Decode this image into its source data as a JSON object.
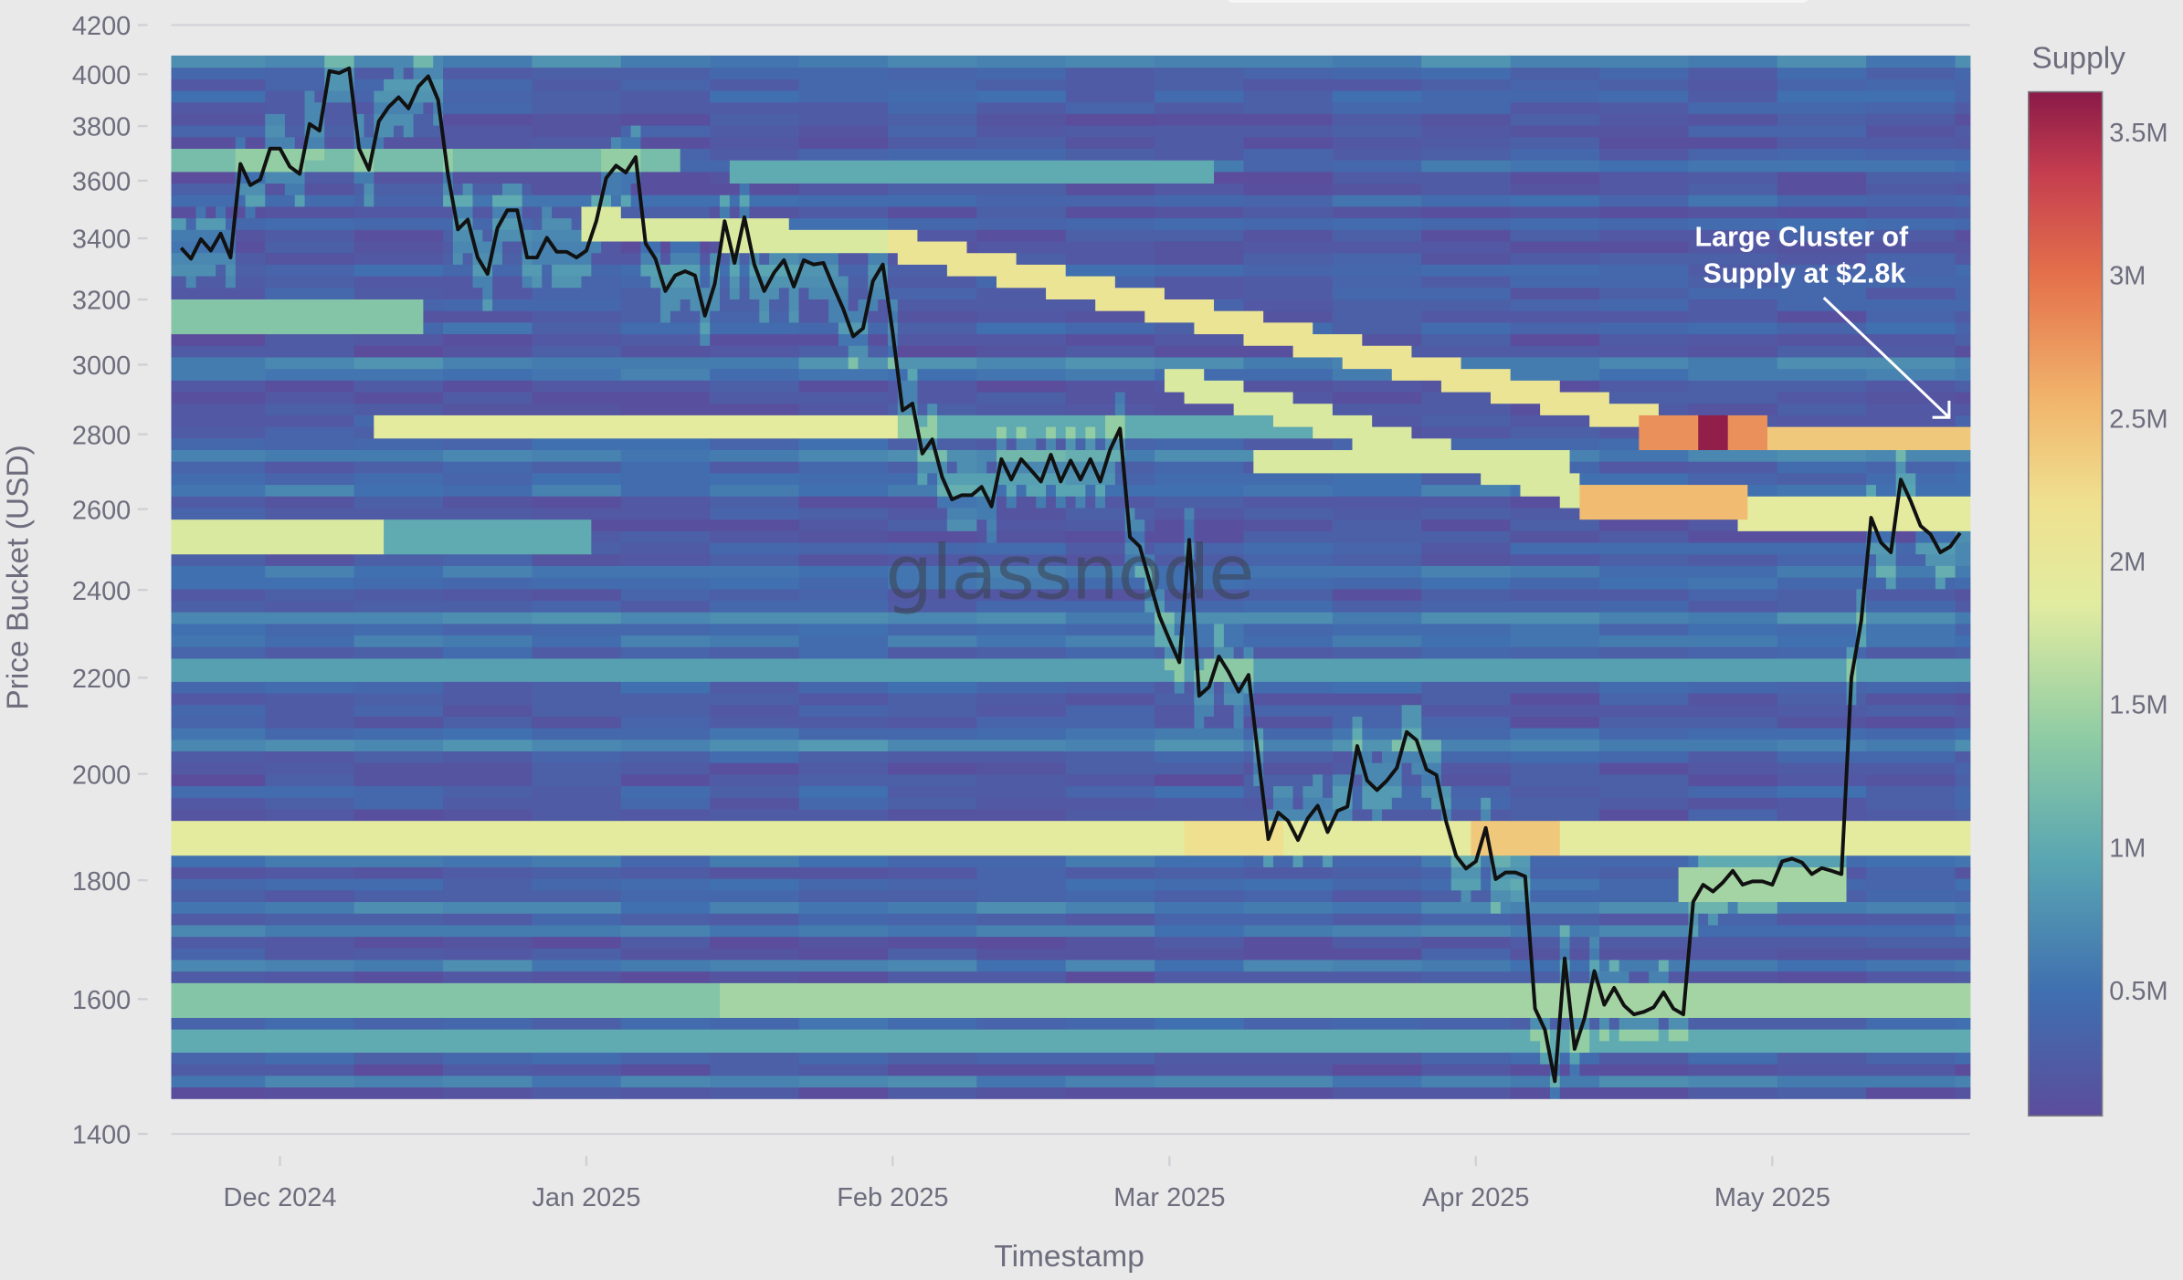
{
  "chart_data": {
    "type": "heatmap",
    "xlabel": "Timestamp",
    "ylabel": "Price Bucket (USD)",
    "yscale": "log",
    "ylim": [
      1400,
      4200
    ],
    "xlim": [
      "2024-11-20",
      "2025-05-21"
    ],
    "grid": false,
    "watermark": "glassnode",
    "y_ticks": [
      "4200",
      "4000",
      "3800",
      "3600",
      "3400",
      "3200",
      "3000",
      "2800",
      "2600",
      "2400",
      "2200",
      "2000",
      "1800",
      "1600",
      "1400"
    ],
    "x_ticks": [
      {
        "date": "2024-12-01",
        "label": "Dec 2024"
      },
      {
        "date": "2025-01-01",
        "label": "Jan 2025"
      },
      {
        "date": "2025-02-01",
        "label": "Feb 2025"
      },
      {
        "date": "2025-03-01",
        "label": "Mar 2025"
      },
      {
        "date": "2025-04-01",
        "label": "Apr 2025"
      },
      {
        "date": "2025-05-01",
        "label": "May 2025"
      }
    ],
    "colorbar": {
      "title": "Supply",
      "range": [
        0.06,
        3.64
      ],
      "ticks": [
        {
          "value": 0.5,
          "label": "0.5M"
        },
        {
          "value": 1,
          "label": "1M"
        },
        {
          "value": 1.5,
          "label": "1.5M"
        },
        {
          "value": 2,
          "label": "2M"
        },
        {
          "value": 2.5,
          "label": "2.5M"
        },
        {
          "value": 3,
          "label": "3M"
        },
        {
          "value": 3.5,
          "label": "3.5M"
        }
      ],
      "colorscale": [
        [
          0,
          "#5b4d9c"
        ],
        [
          0.12,
          "#3f6fb0"
        ],
        [
          0.25,
          "#5aa6b2"
        ],
        [
          0.37,
          "#8fcca4"
        ],
        [
          0.5,
          "#e2eca0"
        ],
        [
          0.6,
          "#efe08f"
        ],
        [
          0.7,
          "#f1b46c"
        ],
        [
          0.82,
          "#e4714b"
        ],
        [
          0.92,
          "#c53e4f"
        ],
        [
          1,
          "#8a1a48"
        ]
      ]
    },
    "heatmap": {
      "price_range": [
        1450,
        4075
      ],
      "background_supply": [
        0.15,
        0.7
      ],
      "bands": [
        {
          "start": "2024-11-20",
          "end": "2025-05-21",
          "price_start": 1880,
          "price_end": 1880,
          "supply": 1.9
        },
        {
          "start": "2025-03-03",
          "end": "2025-03-12",
          "price_start": 1880,
          "price_end": 1880,
          "supply": 2.2
        },
        {
          "start": "2025-04-01",
          "end": "2025-04-09",
          "price_start": 1880,
          "price_end": 1880,
          "supply": 2.4
        },
        {
          "start": "2024-11-20",
          "end": "2025-01-15",
          "price_start": 1600,
          "price_end": 1600,
          "supply": 1.3
        },
        {
          "start": "2025-01-15",
          "end": "2025-05-21",
          "price_start": 1600,
          "price_end": 1600,
          "supply": 1.5
        },
        {
          "start": "2024-11-20",
          "end": "2025-05-21",
          "price_start": 1535,
          "price_end": 1535,
          "supply": 1.0
        },
        {
          "start": "2024-12-11",
          "end": "2025-02-01",
          "price_start": 2820,
          "price_end": 2820,
          "supply": 1.9
        },
        {
          "start": "2025-02-01",
          "end": "2025-03-15",
          "price_start": 2820,
          "price_end": 2820,
          "supply": 1.0
        },
        {
          "start": "2024-11-20",
          "end": "2024-12-11",
          "price_start": 2525,
          "price_end": 2525,
          "supply": 1.8
        },
        {
          "start": "2024-12-11",
          "end": "2025-01-01",
          "price_start": 2525,
          "price_end": 2525,
          "supply": 1.0
        },
        {
          "start": "2025-01-01",
          "end": "2025-02-01",
          "price_start": 3450,
          "price_end": 3380,
          "supply": 1.8
        },
        {
          "start": "2025-02-01",
          "end": "2025-04-20",
          "price_start": 3380,
          "price_end": 2830,
          "supply": 2.1
        },
        {
          "start": "2025-04-20",
          "end": "2025-05-21",
          "price_start": 2790,
          "price_end": 2790,
          "supply": 2.4
        },
        {
          "start": "2025-04-18",
          "end": "2025-04-30",
          "price_start": 2800,
          "price_end": 2800,
          "supply": 2.8
        },
        {
          "start": "2025-04-24",
          "end": "2025-04-26",
          "price_start": 2800,
          "price_end": 2800,
          "supply": 3.6
        },
        {
          "start": "2025-03-01",
          "end": "2025-04-12",
          "price_start": 2960,
          "price_end": 2640,
          "supply": 1.8
        },
        {
          "start": "2025-04-12",
          "end": "2025-04-28",
          "price_start": 2620,
          "price_end": 2620,
          "supply": 2.5
        },
        {
          "start": "2025-04-28",
          "end": "2025-05-21",
          "price_start": 2590,
          "price_end": 2590,
          "supply": 1.9
        },
        {
          "start": "2025-03-10",
          "end": "2025-04-10",
          "price_start": 2720,
          "price_end": 2720,
          "supply": 1.8
        },
        {
          "start": "2025-01-16",
          "end": "2025-03-05",
          "price_start": 3640,
          "price_end": 3640,
          "supply": 1.0
        },
        {
          "start": "2025-04-22",
          "end": "2025-05-08",
          "price_start": 1790,
          "price_end": 1790,
          "supply": 1.5
        },
        {
          "start": "2024-11-20",
          "end": "2025-05-21",
          "price_start": 2220,
          "price_end": 2220,
          "supply": 0.9
        },
        {
          "start": "2024-11-20",
          "end": "2024-12-15",
          "price_start": 3150,
          "price_end": 3150,
          "supply": 1.3
        },
        {
          "start": "2024-11-20",
          "end": "2025-01-10",
          "price_start": 3670,
          "price_end": 3670,
          "supply": 1.2
        }
      ]
    },
    "series": [
      {
        "type": "line",
        "color": "#111111",
        "x": [
          "2024-11-21",
          "2024-11-22",
          "2024-11-23",
          "2024-11-24",
          "2024-11-25",
          "2024-11-26",
          "2024-11-27",
          "2024-11-28",
          "2024-11-29",
          "2024-11-30",
          "2024-12-01",
          "2024-12-02",
          "2024-12-03",
          "2024-12-04",
          "2024-12-05",
          "2024-12-06",
          "2024-12-07",
          "2024-12-08",
          "2024-12-09",
          "2024-12-10",
          "2024-12-11",
          "2024-12-12",
          "2024-12-13",
          "2024-12-14",
          "2024-12-15",
          "2024-12-16",
          "2024-12-17",
          "2024-12-18",
          "2024-12-19",
          "2024-12-20",
          "2024-12-21",
          "2024-12-22",
          "2024-12-23",
          "2024-12-24",
          "2024-12-25",
          "2024-12-26",
          "2024-12-27",
          "2024-12-28",
          "2024-12-29",
          "2024-12-30",
          "2024-12-31",
          "2025-01-01",
          "2025-01-02",
          "2025-01-03",
          "2025-01-04",
          "2025-01-05",
          "2025-01-06",
          "2025-01-07",
          "2025-01-08",
          "2025-01-09",
          "2025-01-10",
          "2025-01-11",
          "2025-01-12",
          "2025-01-13",
          "2025-01-14",
          "2025-01-15",
          "2025-01-16",
          "2025-01-17",
          "2025-01-18",
          "2025-01-19",
          "2025-01-20",
          "2025-01-21",
          "2025-01-22",
          "2025-01-23",
          "2025-01-24",
          "2025-01-25",
          "2025-01-26",
          "2025-01-27",
          "2025-01-28",
          "2025-01-29",
          "2025-01-30",
          "2025-01-31",
          "2025-02-01",
          "2025-02-02",
          "2025-02-03",
          "2025-02-04",
          "2025-02-05",
          "2025-02-06",
          "2025-02-07",
          "2025-02-08",
          "2025-02-09",
          "2025-02-10",
          "2025-02-11",
          "2025-02-12",
          "2025-02-13",
          "2025-02-14",
          "2025-02-15",
          "2025-02-16",
          "2025-02-17",
          "2025-02-18",
          "2025-02-19",
          "2025-02-20",
          "2025-02-21",
          "2025-02-22",
          "2025-02-23",
          "2025-02-24",
          "2025-02-25",
          "2025-02-26",
          "2025-02-27",
          "2025-02-28",
          "2025-03-01",
          "2025-03-02",
          "2025-03-03",
          "2025-03-04",
          "2025-03-05",
          "2025-03-06",
          "2025-03-07",
          "2025-03-08",
          "2025-03-09",
          "2025-03-10",
          "2025-03-11",
          "2025-03-12",
          "2025-03-13",
          "2025-03-14",
          "2025-03-15",
          "2025-03-16",
          "2025-03-17",
          "2025-03-18",
          "2025-03-19",
          "2025-03-20",
          "2025-03-21",
          "2025-03-22",
          "2025-03-23",
          "2025-03-24",
          "2025-03-25",
          "2025-03-26",
          "2025-03-27",
          "2025-03-28",
          "2025-03-29",
          "2025-03-30",
          "2025-03-31",
          "2025-04-01",
          "2025-04-02",
          "2025-04-03",
          "2025-04-04",
          "2025-04-05",
          "2025-04-06",
          "2025-04-07",
          "2025-04-08",
          "2025-04-09",
          "2025-04-10",
          "2025-04-11",
          "2025-04-12",
          "2025-04-13",
          "2025-04-14",
          "2025-04-15",
          "2025-04-16",
          "2025-04-17",
          "2025-04-18",
          "2025-04-19",
          "2025-04-20",
          "2025-04-21",
          "2025-04-22",
          "2025-04-23",
          "2025-04-24",
          "2025-04-25",
          "2025-04-26",
          "2025-04-27",
          "2025-04-28",
          "2025-04-29",
          "2025-04-30",
          "2025-05-01",
          "2025-05-02",
          "2025-05-03",
          "2025-05-04",
          "2025-05-05",
          "2025-05-06",
          "2025-05-07",
          "2025-05-08",
          "2025-05-09",
          "2025-05-10",
          "2025-05-11",
          "2025-05-12",
          "2025-05-13",
          "2025-05-14",
          "2025-05-15",
          "2025-05-16",
          "2025-05-17",
          "2025-05-18",
          "2025-05-19",
          "2025-05-20"
        ],
        "y": [
          3368,
          3332,
          3397,
          3359,
          3416,
          3336,
          3660,
          3584,
          3604,
          3716,
          3716,
          3650,
          3624,
          3808,
          3783,
          4013,
          4005,
          4024,
          3716,
          3639,
          3818,
          3873,
          3910,
          3867,
          3952,
          3992,
          3899,
          3620,
          3430,
          3464,
          3336,
          3282,
          3435,
          3496,
          3496,
          3336,
          3336,
          3402,
          3355,
          3355,
          3336,
          3359,
          3458,
          3609,
          3654,
          3629,
          3685,
          3383,
          3332,
          3227,
          3277,
          3291,
          3277,
          3149,
          3250,
          3458,
          3318,
          3472,
          3313,
          3227,
          3286,
          3327,
          3241,
          3327,
          3313,
          3318,
          3241,
          3170,
          3085,
          3110,
          3259,
          3313,
          3097,
          2867,
          2887,
          2747,
          2786,
          2684,
          2625,
          2636,
          2636,
          2658,
          2607,
          2732,
          2677,
          2732,
          2702,
          2672,
          2744,
          2672,
          2728,
          2677,
          2732,
          2672,
          2758,
          2816,
          2529,
          2505,
          2420,
          2338,
          2284,
          2234,
          2522,
          2161,
          2180,
          2247,
          2212,
          2170,
          2206,
          2031,
          1875,
          1925,
          1909,
          1873,
          1914,
          1938,
          1888,
          1928,
          1936,
          2056,
          1987,
          1968,
          1987,
          2012,
          2085,
          2068,
          2009,
          1998,
          1907,
          1844,
          1821,
          1834,
          1896,
          1802,
          1814,
          1814,
          1807,
          1585,
          1552,
          1475,
          1666,
          1523,
          1570,
          1645,
          1591,
          1618,
          1590,
          1576,
          1580,
          1587,
          1611,
          1585,
          1576,
          1762,
          1792,
          1780,
          1796,
          1817,
          1792,
          1798,
          1798,
          1792,
          1834,
          1839,
          1832,
          1811,
          1822,
          1817,
          1811,
          2200,
          2328,
          2578,
          2515,
          2491,
          2677,
          2621,
          2557,
          2536,
          2491,
          2505,
          2539
        ]
      }
    ],
    "annotations": [
      {
        "lines": [
          "Large Cluster of",
          "Supply at $2.8k"
        ],
        "color": "#ffffff",
        "arrow": true
      }
    ]
  }
}
